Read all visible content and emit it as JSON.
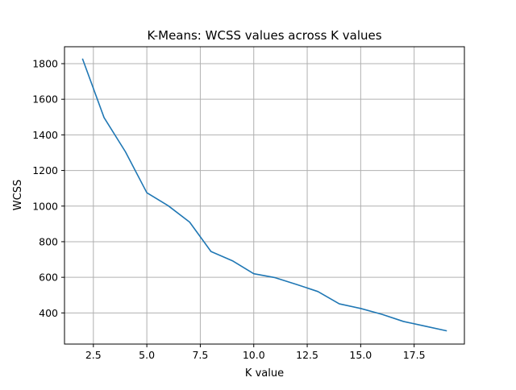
{
  "chart_data": {
    "type": "line",
    "title": "K-Means: WCSS values across K values",
    "xlabel": "K value",
    "ylabel": "WCSS",
    "xlim": [
      1.15,
      19.85
    ],
    "ylim": [
      225,
      1895
    ],
    "xticks": [
      2.5,
      5.0,
      7.5,
      10.0,
      12.5,
      15.0,
      17.5
    ],
    "xtick_labels": [
      "2.5",
      "5.0",
      "7.5",
      "10.0",
      "12.5",
      "15.0",
      "17.5"
    ],
    "yticks": [
      400,
      600,
      800,
      1000,
      1200,
      1400,
      1600,
      1800
    ],
    "ytick_labels": [
      "400",
      "600",
      "800",
      "1000",
      "1200",
      "1400",
      "1600",
      "1800"
    ],
    "grid": true,
    "line_color": "#1f77b4",
    "series": [
      {
        "x": [
          2,
          3,
          4,
          5,
          6,
          7,
          8,
          9,
          10,
          11,
          12,
          13,
          14,
          15,
          16,
          17,
          18,
          19
        ],
        "values": [
          1825,
          1497,
          1305,
          1075,
          1002,
          910,
          745,
          693,
          620,
          598,
          560,
          520,
          451,
          425,
          392,
          352,
          326,
          300
        ]
      }
    ]
  }
}
